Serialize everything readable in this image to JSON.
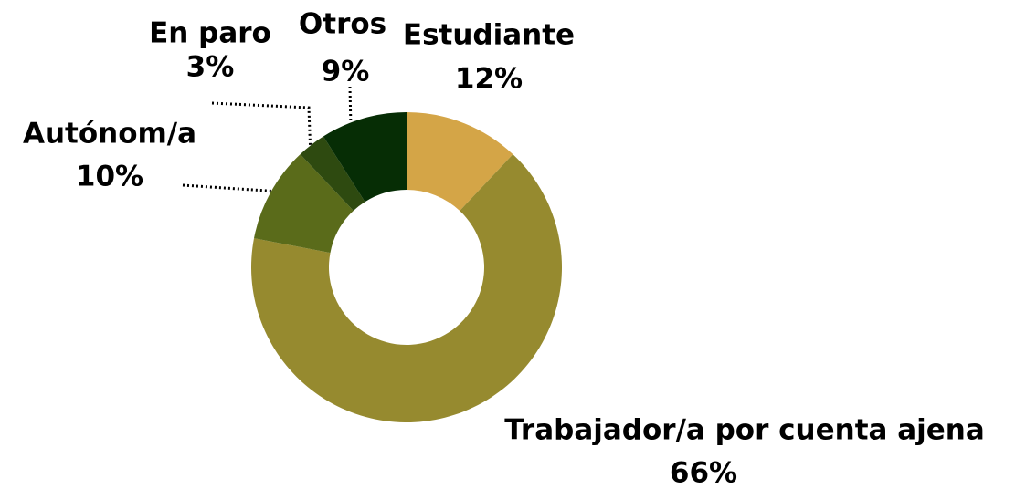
{
  "chart_data": {
    "type": "pie",
    "categories": [
      "Estudiante",
      "Trabajador/a por cuenta ajena",
      "Autónom/a",
      "En paro",
      "Otros"
    ],
    "values": [
      12,
      66,
      10,
      3,
      9
    ],
    "value_labels": [
      "12%",
      "66%",
      "10%",
      "3%",
      "9%"
    ],
    "colors": [
      "#d4a547",
      "#968a2f",
      "#5a6b1a",
      "#2e4a10",
      "#062d05"
    ],
    "donut": true
  }
}
